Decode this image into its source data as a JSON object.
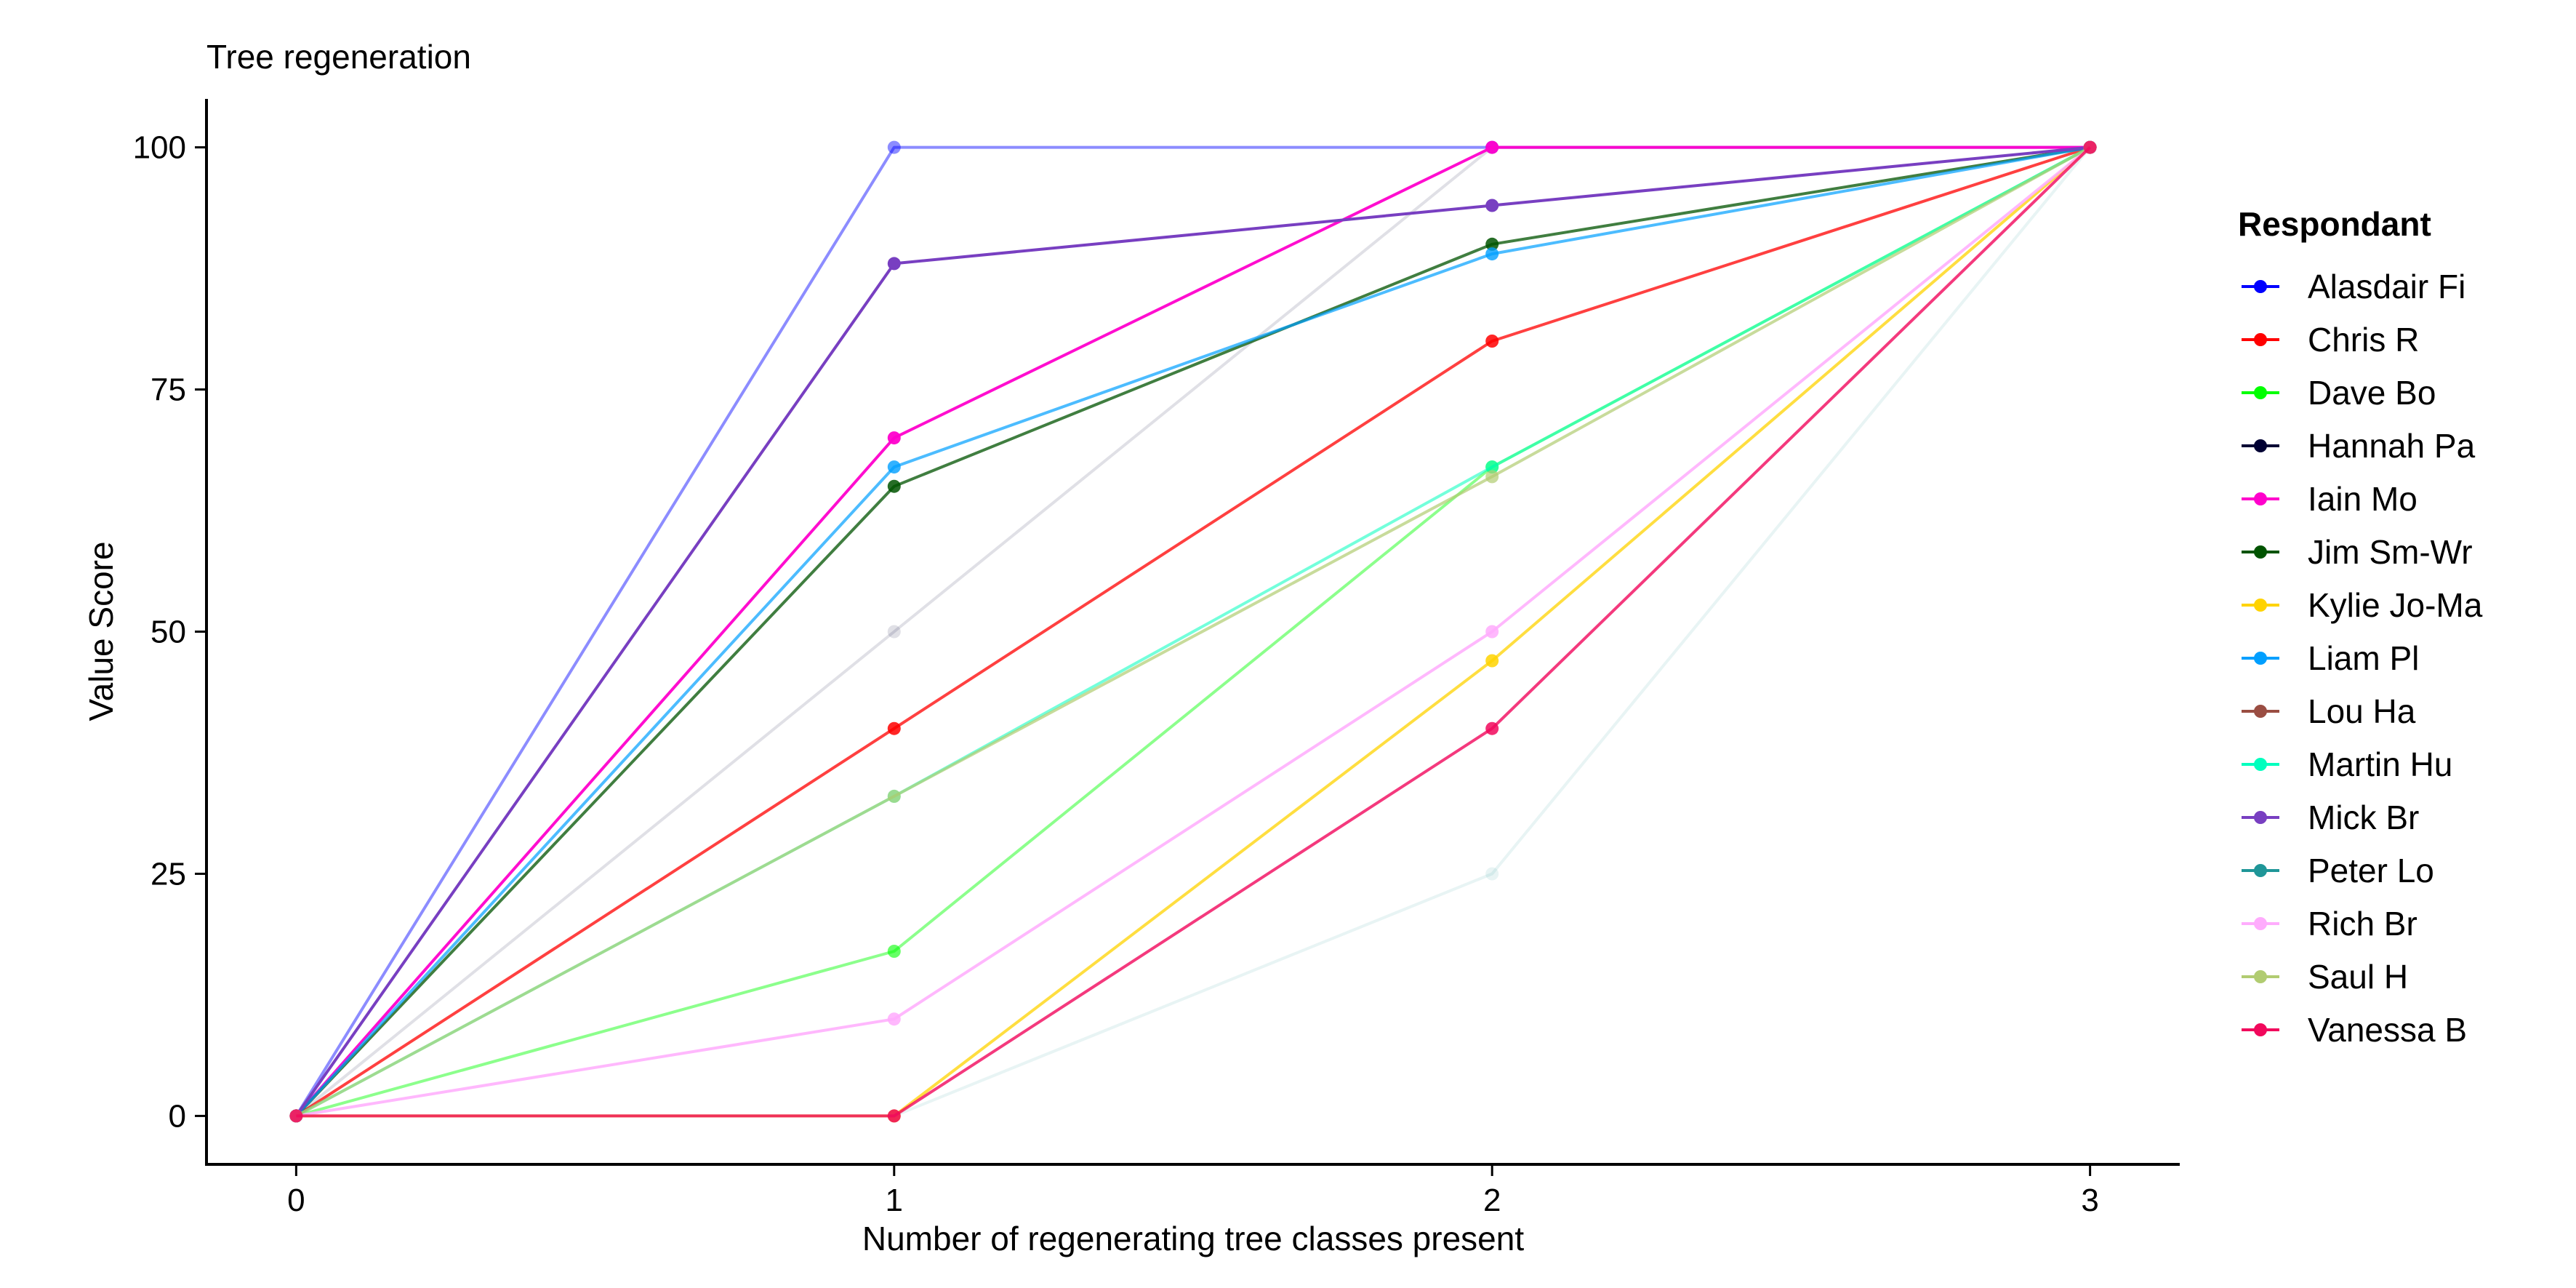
{
  "chart_data": {
    "type": "line",
    "title": "Tree regeneration",
    "xlabel": "Number of regenerating tree classes present",
    "ylabel": "Value Score",
    "x": [
      0,
      1,
      2,
      3
    ],
    "x_ticks": [
      "0",
      "1",
      "2",
      "3"
    ],
    "y_ticks": [
      "0",
      "25",
      "50",
      "75",
      "100"
    ],
    "xlim": [
      -0.15,
      3.15
    ],
    "ylim": [
      -5,
      105
    ],
    "grid": false,
    "legend": {
      "title": "Respondant",
      "position": "right"
    },
    "series": [
      {
        "name": "Alasdair Fi",
        "color": "#0000FF",
        "values": [
          0,
          100,
          100,
          100
        ],
        "line_opacity": 0.45,
        "point_opacity": 0.45
      },
      {
        "name": "Chris R",
        "color": "#FF0000",
        "values": [
          0,
          40,
          80,
          100
        ],
        "line_opacity": 0.75,
        "point_opacity": 0.85
      },
      {
        "name": "Dave Bo",
        "color": "#00FF00",
        "values": [
          0,
          17,
          67,
          100
        ],
        "line_opacity": 0.45,
        "point_opacity": 0.6
      },
      {
        "name": "Hannah Pa",
        "color": "#000033",
        "values": [
          0,
          50,
          100,
          100
        ],
        "line_opacity": 0.12,
        "point_opacity": 0.12
      },
      {
        "name": "Iain Mo",
        "color": "#FF00CC",
        "values": [
          0,
          70,
          100,
          100
        ],
        "line_opacity": 0.95,
        "point_opacity": 0.95
      },
      {
        "name": "Jim Sm-Wr",
        "color": "#005300",
        "values": [
          0,
          65,
          90,
          100
        ],
        "line_opacity": 0.75,
        "point_opacity": 0.85
      },
      {
        "name": "Kylie Jo-Ma",
        "color": "#FFD300",
        "values": [
          0,
          0,
          47,
          100
        ],
        "line_opacity": 0.75,
        "point_opacity": 0.85
      },
      {
        "name": "Liam Pl",
        "color": "#009FFF",
        "values": [
          0,
          67,
          89,
          100
        ],
        "line_opacity": 0.7,
        "point_opacity": 0.8
      },
      {
        "name": "Lou Ha",
        "color": "#9A4D42",
        "values": [
          0,
          0,
          25,
          100
        ],
        "line_opacity": 0.0,
        "point_opacity": 0.0
      },
      {
        "name": "Martin Hu",
        "color": "#00FFBE",
        "values": [
          0,
          33,
          67,
          100
        ],
        "line_opacity": 0.55,
        "point_opacity": 0.6
      },
      {
        "name": "Mick Br",
        "color": "#783FC1",
        "values": [
          0,
          88,
          94,
          100
        ],
        "line_opacity": 1.0,
        "point_opacity": 1.0
      },
      {
        "name": "Peter Lo",
        "color": "#1F9698",
        "values": [
          0,
          0,
          25,
          100
        ],
        "line_opacity": 0.1,
        "point_opacity": 0.1
      },
      {
        "name": "Rich Br",
        "color": "#FFACFD",
        "values": [
          0,
          10,
          50,
          100
        ],
        "line_opacity": 0.85,
        "point_opacity": 0.85
      },
      {
        "name": "Saul H",
        "color": "#B1CC71",
        "values": [
          0,
          33,
          66,
          100
        ],
        "line_opacity": 0.7,
        "point_opacity": 0.7
      },
      {
        "name": "Vanessa B",
        "color": "#F1085C",
        "values": [
          0,
          0,
          40,
          100
        ],
        "line_opacity": 0.8,
        "point_opacity": 0.85
      }
    ]
  }
}
